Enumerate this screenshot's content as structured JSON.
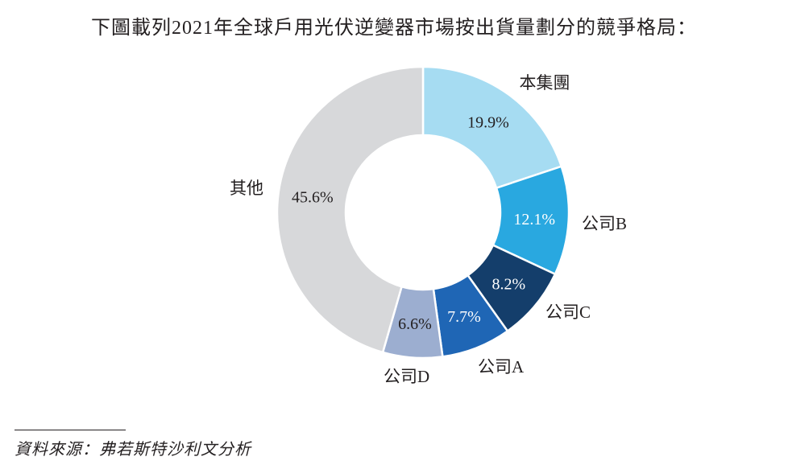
{
  "title": "下圖載列2021年全球戶用光伏逆變器市場按出貨量劃分的競爭格局：",
  "source": "資料來源：弗若斯特沙利文分析",
  "chart_data": {
    "type": "pie",
    "donut": true,
    "unit": "%",
    "start": "12 o'clock",
    "direction": "clockwise",
    "slices": [
      {
        "label": "本集團",
        "value": 19.9,
        "display": "19.9%",
        "color": "#a6dcf2",
        "value_text_color": "#231f20"
      },
      {
        "label": "公司B",
        "value": 12.1,
        "display": "12.1%",
        "color": "#29a8e0",
        "value_text_color": "#ffffff"
      },
      {
        "label": "公司C",
        "value": 8.2,
        "display": "8.2%",
        "color": "#143e6b",
        "value_text_color": "#ffffff"
      },
      {
        "label": "公司A",
        "value": 7.7,
        "display": "7.7%",
        "color": "#1f66b5",
        "value_text_color": "#ffffff"
      },
      {
        "label": "公司D",
        "value": 6.6,
        "display": "6.6%",
        "color": "#9caed0",
        "value_text_color": "#231f20"
      },
      {
        "label": "其他",
        "value": 45.6,
        "display": "45.6%",
        "color": "#d7d8da",
        "value_text_color": "#231f20"
      }
    ]
  }
}
